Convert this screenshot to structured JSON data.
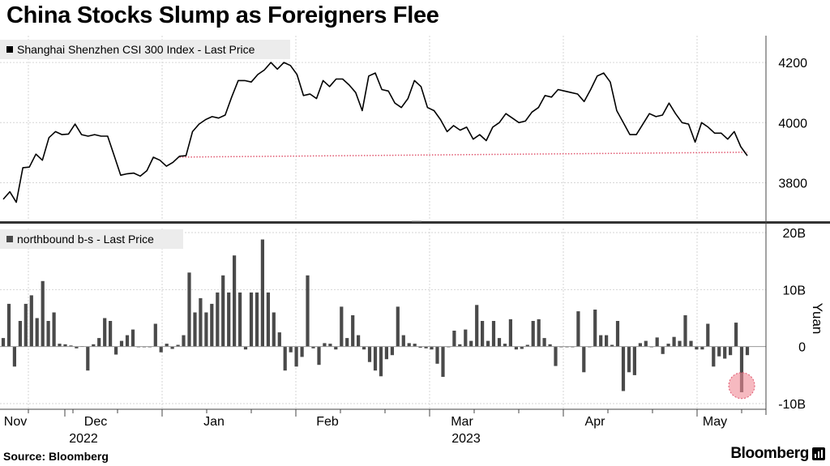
{
  "title": "China Stocks Slump as Foreigners Flee",
  "source": "Source: Bloomberg",
  "brand": "Bloomberg",
  "colors": {
    "line": "#000000",
    "bar": "#4a4a4a",
    "grid": "#d6d6d6",
    "dotted": "#e0576f",
    "highlight": "#f08a96",
    "legend_bg": "#ececec"
  },
  "chart_data": [
    {
      "type": "line",
      "legend": "Shanghai Shenzhen CSI 300 Index - Last Price",
      "ylim": [
        3680,
        4300
      ],
      "yticks": [
        3800,
        4000,
        4200
      ],
      "reference_level": 3888,
      "values": [
        3745,
        3770,
        3735,
        3850,
        3852,
        3895,
        3875,
        3950,
        3970,
        3960,
        3962,
        3995,
        3960,
        3955,
        3960,
        3955,
        3955,
        3890,
        3825,
        3830,
        3832,
        3822,
        3840,
        3885,
        3875,
        3855,
        3868,
        3888,
        3890,
        3970,
        3995,
        4010,
        4020,
        4015,
        4025,
        4085,
        4140,
        4140,
        4135,
        4160,
        4175,
        4200,
        4178,
        4200,
        4190,
        4160,
        4090,
        4095,
        4080,
        4140,
        4120,
        4145,
        4145,
        4125,
        4100,
        4040,
        4155,
        4165,
        4110,
        4105,
        4065,
        4050,
        4080,
        4140,
        4120,
        4050,
        4040,
        4010,
        3970,
        3990,
        3975,
        3985,
        3945,
        3960,
        3940,
        3985,
        4000,
        4030,
        4015,
        4000,
        4005,
        4035,
        4050,
        4090,
        4085,
        4110,
        4105,
        4100,
        4095,
        4070,
        4110,
        4155,
        4165,
        4135,
        4040,
        4000,
        3960,
        3960,
        3995,
        4030,
        4020,
        4025,
        4065,
        4030,
        4000,
        3995,
        3935,
        4000,
        3985,
        3965,
        3965,
        3945,
        3970,
        3920,
        3890
      ]
    },
    {
      "type": "bar",
      "legend": "northbound b-s - Last Price",
      "ylabel": "Yuan",
      "ylim": [
        -11,
        21
      ],
      "yticks": [
        20,
        10,
        0,
        -10
      ],
      "ytick_labels": [
        "20B",
        "10B",
        "0",
        "-10B"
      ],
      "values": [
        1.5,
        7.5,
        -3.5,
        4.5,
        7.5,
        9,
        5,
        11.5,
        4.5,
        6,
        0.5,
        0.4,
        0.2,
        -0.3,
        0.1,
        -4.2,
        0.4,
        1.5,
        5,
        4.5,
        -1.4,
        1,
        2,
        3,
        0,
        0,
        0,
        4,
        -1,
        0.5,
        -0.4,
        0.3,
        2,
        13,
        6,
        8.5,
        6,
        7.5,
        9.5,
        12.5,
        9.5,
        16,
        9.5,
        -0.5,
        9.5,
        9.5,
        18.8,
        9.5,
        6,
        2.5,
        -4.2,
        -1,
        -3.5,
        -1.8,
        12.5,
        -0.3,
        -3.2,
        0.6,
        0.5,
        -0.5,
        7,
        1.5,
        5.5,
        2,
        -0.5,
        -2.7,
        -4.2,
        -5.2,
        -2.2,
        -1.5,
        7,
        2,
        0.6,
        0.5,
        -0.2,
        -0.3,
        -0.5,
        -3,
        -5.3,
        0,
        2.8,
        0.4,
        3,
        1,
        7.3,
        4.5,
        1,
        4.5,
        1.5,
        0.5,
        4.8,
        -0.5,
        -0.4,
        0.3,
        4.5,
        4.8,
        1.5,
        0.4,
        -3.4,
        0,
        0,
        0,
        6.2,
        -4.5,
        0,
        6.5,
        2,
        2,
        0.3,
        4.5,
        -7.8,
        -4.5,
        -5,
        0.6,
        1,
        0,
        1.6,
        -1.3,
        0.5,
        1.7,
        1,
        5.5,
        1,
        -0.5,
        -0.5,
        4,
        -3.5,
        -1.7,
        -2.1,
        -1.5,
        4.2,
        -8,
        -1.5
      ],
      "highlight_value": -8
    }
  ],
  "x_axis": {
    "months": [
      "Nov",
      "Dec",
      "Jan",
      "Feb",
      "Mar",
      "Apr",
      "May"
    ],
    "years": [
      "2022",
      "2023"
    ]
  }
}
